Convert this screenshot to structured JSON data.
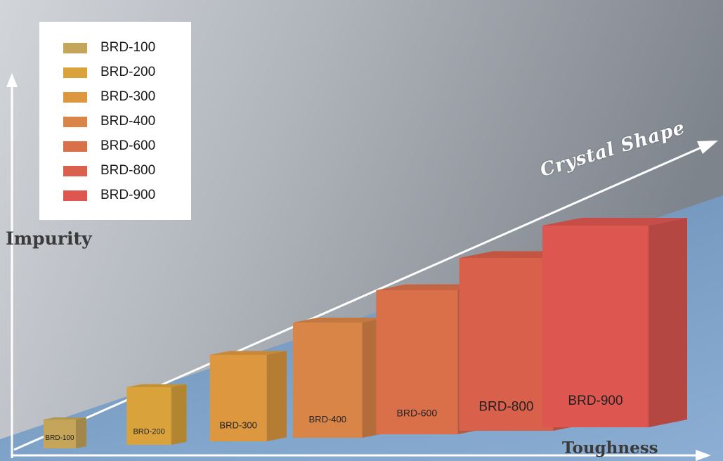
{
  "chart_data": {
    "type": "bar",
    "categories": [
      "BRD-100",
      "BRD-200",
      "BRD-300",
      "BRD-400",
      "BRD-600",
      "BRD-800",
      "BRD-900"
    ],
    "values": [
      1,
      2,
      3,
      4,
      5,
      6,
      7
    ],
    "colors": [
      "#c4a55a",
      "#d9a23a",
      "#dd983f",
      "#d98548",
      "#d9704a",
      "#d9604a",
      "#dd5650"
    ],
    "legend": [
      "BRD-100",
      "BRD-200",
      "BRD-300",
      "BRD-400",
      "BRD-600",
      "BRD-800",
      "BRD-900"
    ],
    "legend_position": "top-left",
    "ylabel": "Impurity",
    "xlabel": "Toughness",
    "diagonal_axis_label": "Crystal Shape",
    "grid": false
  }
}
